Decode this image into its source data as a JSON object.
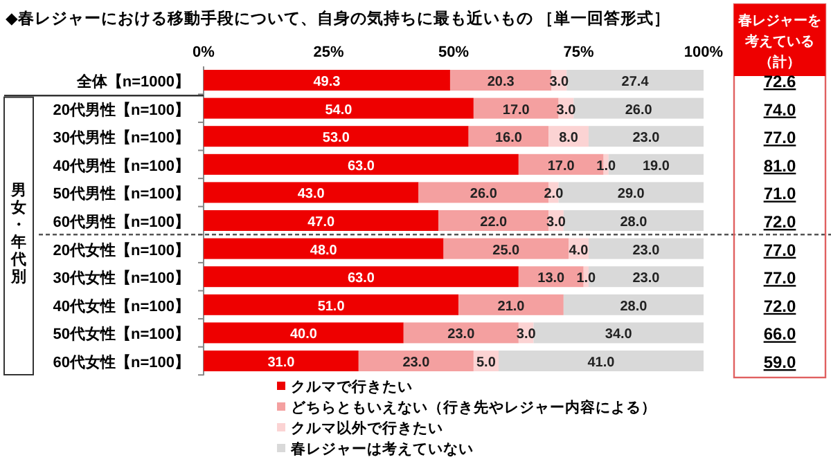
{
  "chart_data": {
    "type": "bar",
    "orientation": "horizontal",
    "stacked": true,
    "title": "◆春レジャーにおける移動手段について、自身の気持ちに最も近いもの ［単一回答形式］",
    "categories": [
      "全体【n=1000】",
      "20代男性【n=100】",
      "30代男性【n=100】",
      "40代男性【n=100】",
      "50代男性【n=100】",
      "60代男性【n=100】",
      "20代女性【n=100】",
      "30代女性【n=100】",
      "40代女性【n=100】",
      "50代女性【n=100】",
      "60代女性【n=100】"
    ],
    "series": [
      {
        "name": "クルマで行きたい",
        "color": "#ee0000",
        "values": [
          49.3,
          54,
          53,
          63,
          43,
          47,
          48,
          63,
          51,
          40,
          31
        ],
        "value_labels": [
          "49.3",
          "54.0",
          "53.0",
          "63.0",
          "43.0",
          "47.0",
          "48.0",
          "63.0",
          "51.0",
          "40.0",
          "31.0"
        ]
      },
      {
        "name": "どちらともいえない（行き先やレジャー内容による）",
        "color": "#f4a0a0",
        "values": [
          20.3,
          17,
          16,
          17,
          26,
          22,
          25,
          13,
          21,
          23,
          23
        ],
        "value_labels": [
          "20.3",
          "17.0",
          "16.0",
          "17.0",
          "26.0",
          "22.0",
          "25.0",
          "13.0",
          "21.0",
          "23.0",
          "23.0"
        ]
      },
      {
        "name": "クルマ以外で行きたい",
        "color": "#fbd3d3",
        "values": [
          3,
          3,
          8,
          1,
          2,
          3,
          4,
          1,
          null,
          3,
          5
        ],
        "value_labels": [
          "3.0",
          "3.0",
          "8.0",
          "1.0",
          "2.0",
          "3.0",
          "4.0",
          "1.0",
          null,
          "3.0",
          "5.0"
        ]
      },
      {
        "name": "春レジャーは考えていない",
        "color": "#d9d9d9",
        "values": [
          27.4,
          26,
          23,
          19,
          29,
          28,
          23,
          23,
          28,
          34,
          41
        ],
        "value_labels": [
          "27.4",
          "26.0",
          "23.0",
          "19.0",
          "29.0",
          "28.0",
          "23.0",
          "23.0",
          "28.0",
          "34.0",
          "41.0"
        ]
      }
    ],
    "xlim": [
      0,
      100
    ],
    "xticks": [
      {
        "value": 0,
        "label": "0%"
      },
      {
        "value": 25,
        "label": "25%"
      },
      {
        "value": 50,
        "label": "50%"
      },
      {
        "value": 75,
        "label": "75%"
      },
      {
        "value": 100,
        "label": "100%"
      }
    ],
    "grid": false,
    "legend": "bottom",
    "annotations": [
      "男女・年代別",
      "春レジャーを考えている（計）",
      "72.6",
      "74.0",
      "77.0",
      "81.0",
      "71.0",
      "72.0",
      "77.0",
      "77.0",
      "72.0",
      "66.0",
      "59.0"
    ]
  }
}
